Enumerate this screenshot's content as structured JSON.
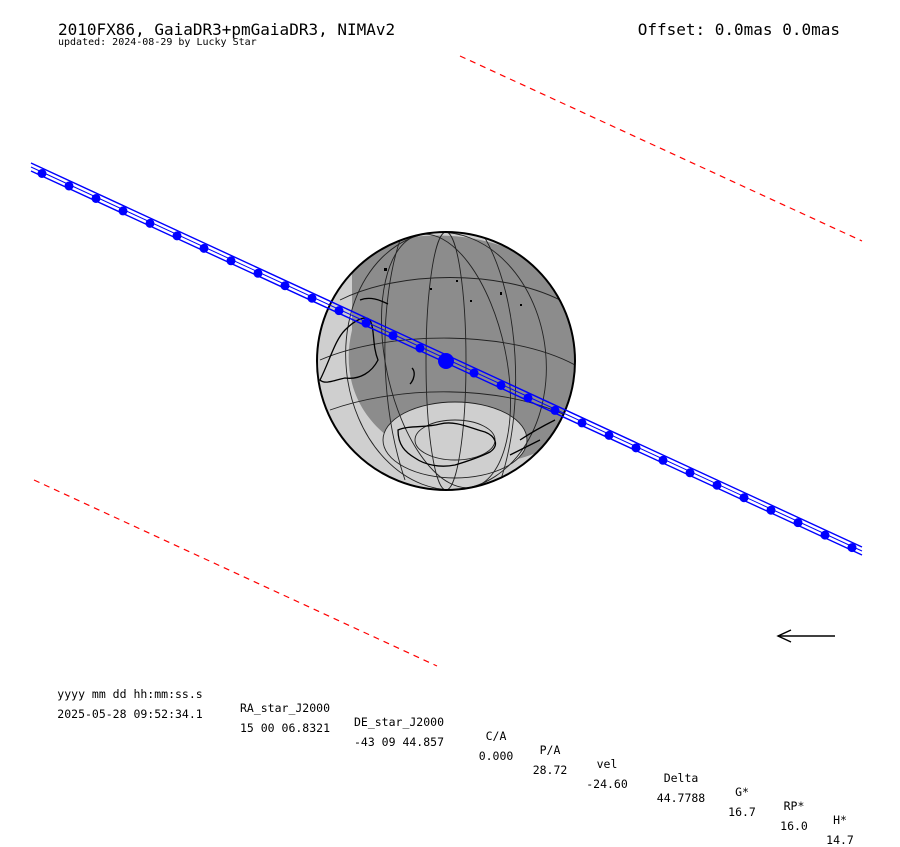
{
  "header": {
    "title": "2010FX86, GaiaDR3+pmGaiaDR3, NIMAv2",
    "updated": "updated: 2024-08-29 by Lucky Star",
    "offset": "Offset: 0.0mas 0.0mas"
  },
  "table": {
    "columns": [
      "yyyy mm dd hh:mm:ss.s",
      "RA_star_J2000",
      "DE_star_J2000",
      "C/A",
      "P/A",
      "vel",
      "Delta",
      "G*",
      "RP*",
      "H*"
    ],
    "values": [
      "2025-05-28 09:52:34.1",
      "15 00 06.8321",
      "-43 09 44.857",
      "0.000",
      "28.72",
      "-24.60",
      "44.7788",
      "16.7",
      "16.0",
      "14.7"
    ]
  },
  "colors": {
    "shadow_path": "#0000ff",
    "uncertainty_limits": "#ff0000",
    "globe_night": "#8c8c8c",
    "globe_twilight": "#cfcfcf",
    "coastline": "#000000"
  },
  "icons": {
    "direction": "arrow-left-icon"
  }
}
